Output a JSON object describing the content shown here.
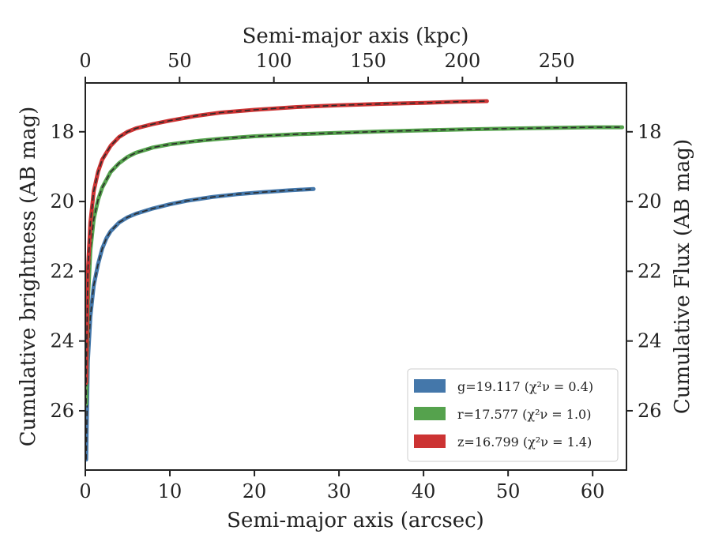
{
  "chart_data": {
    "type": "line",
    "title": "",
    "xlabel": "Semi-major axis (arcsec)",
    "xlabel_top": "Semi-major axis (kpc)",
    "ylabel": "Cumulative brightness (AB mag)",
    "ylabel_right": "Cumulative Flux (AB mag)",
    "xlim": [
      0,
      64
    ],
    "ylim": [
      27.7,
      16.6
    ],
    "top_xlim": [
      0,
      287
    ],
    "y_inverted": true,
    "grid": false,
    "legend_position": "lower-right",
    "x_ticks": [
      0,
      10,
      20,
      30,
      40,
      50,
      60
    ],
    "y_ticks": [
      18,
      20,
      22,
      24,
      26
    ],
    "top_x_ticks": [
      0,
      50,
      100,
      150,
      200,
      250
    ],
    "series": [
      {
        "name": "g",
        "legend_label": "g=19.117",
        "chi2_label": "(χ²ν = 0.4)",
        "color": "#4477aa",
        "x": [
          0.1,
          0.3,
          0.6,
          1.0,
          1.5,
          2.0,
          2.5,
          3.0,
          4.0,
          5.0,
          6.0,
          8.0,
          10.0,
          12.0,
          15.0,
          18.0,
          21.0,
          24.0,
          27.0
        ],
        "y": [
          27.4,
          24.6,
          23.3,
          22.4,
          21.8,
          21.35,
          21.05,
          20.85,
          20.6,
          20.45,
          20.35,
          20.2,
          20.08,
          19.98,
          19.87,
          19.79,
          19.73,
          19.68,
          19.64
        ]
      },
      {
        "name": "r",
        "legend_label": "r=17.577",
        "chi2_label": "(χ²ν = 1.0)",
        "color": "#55a24d",
        "x": [
          0.1,
          0.3,
          0.6,
          1.0,
          1.5,
          2.0,
          3.0,
          4.0,
          5.0,
          6.0,
          8.0,
          10.0,
          13.0,
          16.0,
          20.0,
          25.0,
          30.0,
          35.0,
          40.0,
          45.0,
          50.0,
          55.0,
          60.0,
          63.5
        ],
        "y": [
          25.8,
          22.9,
          21.4,
          20.5,
          19.95,
          19.6,
          19.15,
          18.9,
          18.72,
          18.6,
          18.45,
          18.36,
          18.27,
          18.2,
          18.13,
          18.07,
          18.03,
          17.99,
          17.96,
          17.93,
          17.91,
          17.89,
          17.87,
          17.87
        ]
      },
      {
        "name": "z",
        "legend_label": "z=16.799",
        "chi2_label": "(χ²ν = 1.4)",
        "color": "#cc3333",
        "x": [
          0.1,
          0.3,
          0.6,
          1.0,
          1.5,
          2.0,
          3.0,
          4.0,
          5.0,
          6.0,
          8.0,
          10.0,
          13.0,
          16.0,
          20.0,
          25.0,
          30.0,
          35.0,
          40.0,
          44.0,
          47.5
        ],
        "y": [
          25.2,
          22.0,
          20.6,
          19.7,
          19.15,
          18.8,
          18.4,
          18.15,
          18.0,
          17.9,
          17.78,
          17.68,
          17.55,
          17.45,
          17.37,
          17.29,
          17.24,
          17.2,
          17.17,
          17.14,
          17.12
        ]
      }
    ]
  }
}
